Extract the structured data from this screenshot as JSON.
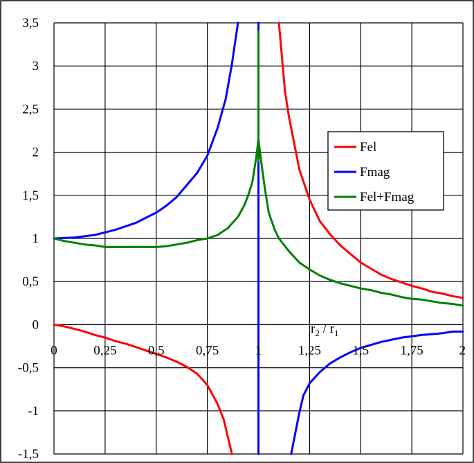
{
  "chart_data": {
    "type": "line",
    "title": "",
    "xlabel": "r2 / r1",
    "xlabel_parts": {
      "var1": "r",
      "sub1": "2",
      "sep": " / ",
      "var2": "r",
      "sub2": "1"
    },
    "ylabel": "",
    "xlim": [
      0,
      2
    ],
    "ylim": [
      -1.5,
      3.5
    ],
    "x_ticks": [
      0,
      0.25,
      0.5,
      0.75,
      1,
      1.25,
      1.5,
      1.75,
      2
    ],
    "x_tick_labels": [
      "0",
      "0,25",
      "0,5",
      "0,75",
      "1",
      "1,25",
      "1,5",
      "1,75",
      "2"
    ],
    "y_ticks": [
      -1.5,
      -1,
      -0.5,
      0,
      0.5,
      1,
      1.5,
      2,
      2.5,
      3,
      3.5
    ],
    "y_tick_labels": [
      "-1,5",
      "-1",
      "-0,5",
      "0",
      "0,5",
      "1",
      "1,5",
      "2",
      "2,5",
      "3",
      "3,5"
    ],
    "grid": true,
    "legend_position": "right",
    "series": [
      {
        "name": "Fel",
        "color": "#ff0000",
        "segments": [
          [
            [
              0,
              0
            ],
            [
              0.05,
              -0.02
            ],
            [
              0.1,
              -0.05
            ],
            [
              0.15,
              -0.08
            ],
            [
              0.2,
              -0.12
            ],
            [
              0.25,
              -0.15
            ],
            [
              0.3,
              -0.19
            ],
            [
              0.35,
              -0.22
            ],
            [
              0.4,
              -0.26
            ],
            [
              0.45,
              -0.3
            ],
            [
              0.5,
              -0.34
            ],
            [
              0.55,
              -0.38
            ],
            [
              0.6,
              -0.43
            ],
            [
              0.65,
              -0.49
            ],
            [
              0.7,
              -0.57
            ],
            [
              0.75,
              -0.7
            ],
            [
              0.8,
              -0.92
            ],
            [
              0.83,
              -1.1
            ],
            [
              0.85,
              -1.3
            ],
            [
              0.87,
              -1.5
            ]
          ],
          [
            [
              1.1,
              3.5
            ],
            [
              1.13,
              2.7
            ],
            [
              1.15,
              2.4
            ],
            [
              1.2,
              1.8
            ],
            [
              1.25,
              1.45
            ],
            [
              1.3,
              1.2
            ],
            [
              1.35,
              1.05
            ],
            [
              1.4,
              0.92
            ],
            [
              1.45,
              0.82
            ],
            [
              1.5,
              0.72
            ],
            [
              1.55,
              0.65
            ],
            [
              1.6,
              0.58
            ],
            [
              1.65,
              0.53
            ],
            [
              1.7,
              0.49
            ],
            [
              1.75,
              0.45
            ],
            [
              1.8,
              0.42
            ],
            [
              1.85,
              0.38
            ],
            [
              1.9,
              0.36
            ],
            [
              1.95,
              0.33
            ],
            [
              2.0,
              0.31
            ]
          ]
        ]
      },
      {
        "name": "Fmag",
        "color": "#0000ff",
        "segments": [
          [
            [
              0,
              1
            ],
            [
              0.1,
              1.01
            ],
            [
              0.2,
              1.04
            ],
            [
              0.25,
              1.07
            ],
            [
              0.3,
              1.1
            ],
            [
              0.35,
              1.14
            ],
            [
              0.4,
              1.18
            ],
            [
              0.45,
              1.24
            ],
            [
              0.5,
              1.3
            ],
            [
              0.55,
              1.38
            ],
            [
              0.6,
              1.48
            ],
            [
              0.65,
              1.62
            ],
            [
              0.7,
              1.76
            ],
            [
              0.75,
              1.96
            ],
            [
              0.8,
              2.28
            ],
            [
              0.84,
              2.62
            ],
            [
              0.87,
              3.02
            ],
            [
              0.9,
              3.5
            ]
          ],
          [
            [
              1,
              3.5
            ],
            [
              1,
              -1.5
            ]
          ],
          [
            [
              1.16,
              -1.5
            ],
            [
              1.2,
              -1.02
            ],
            [
              1.22,
              -0.82
            ],
            [
              1.25,
              -0.68
            ],
            [
              1.3,
              -0.55
            ],
            [
              1.35,
              -0.45
            ],
            [
              1.4,
              -0.38
            ],
            [
              1.45,
              -0.32
            ],
            [
              1.5,
              -0.27
            ],
            [
              1.6,
              -0.2
            ],
            [
              1.7,
              -0.15
            ],
            [
              1.8,
              -0.12
            ],
            [
              1.9,
              -0.1
            ],
            [
              1.95,
              -0.08
            ],
            [
              2.0,
              -0.08
            ]
          ]
        ]
      },
      {
        "name": "Fel+Fmag",
        "color": "#008000",
        "segments": [
          [
            [
              0,
              1
            ],
            [
              0.05,
              0.97
            ],
            [
              0.1,
              0.95
            ],
            [
              0.15,
              0.93
            ],
            [
              0.2,
              0.92
            ],
            [
              0.25,
              0.9
            ],
            [
              0.3,
              0.9
            ],
            [
              0.35,
              0.9
            ],
            [
              0.4,
              0.9
            ],
            [
              0.45,
              0.9
            ],
            [
              0.5,
              0.9
            ],
            [
              0.55,
              0.91
            ],
            [
              0.6,
              0.93
            ],
            [
              0.65,
              0.95
            ],
            [
              0.7,
              0.98
            ],
            [
              0.75,
              1.0
            ],
            [
              0.8,
              1.04
            ],
            [
              0.85,
              1.12
            ],
            [
              0.9,
              1.25
            ],
            [
              0.93,
              1.38
            ],
            [
              0.95,
              1.5
            ],
            [
              0.97,
              1.65
            ],
            [
              0.99,
              1.95
            ],
            [
              1.0,
              2.15
            ],
            [
              1.01,
              1.95
            ],
            [
              1.03,
              1.6
            ],
            [
              1.05,
              1.3
            ],
            [
              1.08,
              1.1
            ],
            [
              1.1,
              1.0
            ],
            [
              1.15,
              0.85
            ],
            [
              1.2,
              0.72
            ],
            [
              1.25,
              0.64
            ],
            [
              1.3,
              0.57
            ],
            [
              1.35,
              0.52
            ],
            [
              1.4,
              0.48
            ],
            [
              1.45,
              0.45
            ],
            [
              1.5,
              0.42
            ],
            [
              1.55,
              0.4
            ],
            [
              1.6,
              0.37
            ],
            [
              1.65,
              0.35
            ],
            [
              1.7,
              0.32
            ],
            [
              1.75,
              0.3
            ],
            [
              1.8,
              0.29
            ],
            [
              1.85,
              0.27
            ],
            [
              1.9,
              0.25
            ],
            [
              1.95,
              0.24
            ],
            [
              2.0,
              0.22
            ]
          ],
          [
            [
              1,
              1.9
            ],
            [
              1,
              3.4
            ]
          ]
        ]
      }
    ]
  }
}
